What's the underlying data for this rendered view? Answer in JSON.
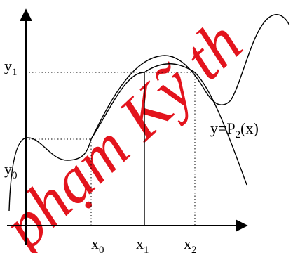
{
  "watermark": {
    "text": "phạm Kỹ th",
    "color": "#e3141d"
  },
  "labels": {
    "y1": {
      "base": "y",
      "sub": "1"
    },
    "y0": {
      "base": "y",
      "sub": "0"
    },
    "x0": {
      "base": "x",
      "sub": "0"
    },
    "x1": {
      "base": "x",
      "sub": "1"
    },
    "x2": {
      "base": "x",
      "sub": "2"
    },
    "poly": {
      "pre": "y=P",
      "sub": "2",
      "post": "(x)"
    }
  },
  "colors": {
    "ink": "#000000",
    "background": "#ffffff"
  }
}
